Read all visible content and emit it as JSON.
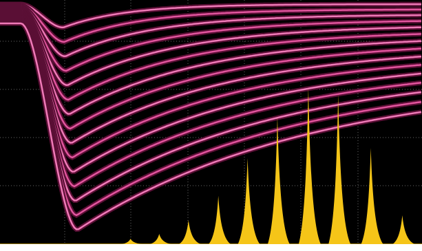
{
  "chart_data": {
    "type": "peaks",
    "color": "#f5c518",
    "x": [
      2.32,
      2.83,
      3.35,
      3.88,
      4.4,
      4.93,
      5.48,
      6.01,
      6.59,
      7.15
    ],
    "values": [
      0.11,
      0.21,
      0.49,
      0.99,
      1.76,
      2.61,
      3.21,
      3.07,
      1.97,
      0.59
    ],
    "xlim": [
      0,
      7.5
    ],
    "ylim": [
      0,
      5
    ]
  }
}
